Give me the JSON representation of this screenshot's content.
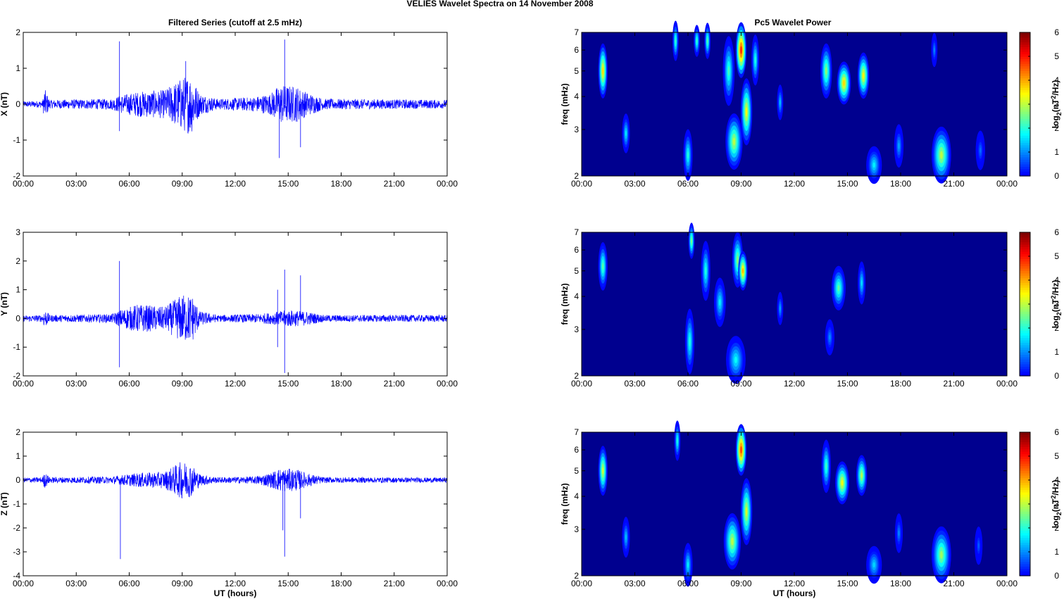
{
  "figure_title": "VELIES Wavelet Spectra on 14 November  2008",
  "left_title": "Filtered Series (cutoff at 2.5 mHz)",
  "right_title": "Pc5 Wavelet Power",
  "x_axis_label": "UT (hours)",
  "colors": {
    "trace": "#0000ff",
    "axis": "#000000"
  },
  "chart_data": [
    {
      "type": "line",
      "title": "Filtered Series (cutoff at 2.5 mHz)",
      "ylabel": "X (nT)",
      "xlabel": "",
      "x_ticks": [
        "00:00",
        "03:00",
        "06:00",
        "09:00",
        "12:00",
        "15:00",
        "18:00",
        "21:00",
        "00:00"
      ],
      "xlim_hours": [
        0,
        24
      ],
      "ylim": [
        -2,
        2
      ],
      "y_ticks": [
        "2",
        "1",
        "0",
        "-1",
        "-2"
      ],
      "baseline_amplitude": 0.1,
      "envelope": [
        [
          0,
          0.08
        ],
        [
          1.1,
          0.1
        ],
        [
          1.2,
          0.45
        ],
        [
          1.5,
          0.12
        ],
        [
          5,
          0.15
        ],
        [
          5.5,
          0.25
        ],
        [
          6.5,
          0.35
        ],
        [
          8,
          0.4
        ],
        [
          9,
          0.75
        ],
        [
          9.5,
          0.85
        ],
        [
          10,
          0.3
        ],
        [
          11,
          0.15
        ],
        [
          13,
          0.2
        ],
        [
          14,
          0.3
        ],
        [
          14.5,
          0.55
        ],
        [
          15.5,
          0.5
        ],
        [
          16,
          0.35
        ],
        [
          17,
          0.15
        ],
        [
          24,
          0.12
        ]
      ],
      "spikes": [
        [
          5.45,
          1.75
        ],
        [
          5.45,
          -0.75
        ],
        [
          9.2,
          1.2
        ],
        [
          14.5,
          -1.5
        ],
        [
          14.8,
          1.8
        ],
        [
          15.7,
          -1.2
        ]
      ],
      "series": [
        {
          "name": "X",
          "color": "#0000ff"
        }
      ]
    },
    {
      "type": "line",
      "title": "",
      "ylabel": "Y (nT)",
      "xlabel": "",
      "x_ticks": [
        "00:00",
        "03:00",
        "06:00",
        "09:00",
        "12:00",
        "15:00",
        "18:00",
        "21:00",
        "00:00"
      ],
      "xlim_hours": [
        0,
        24
      ],
      "ylim": [
        -2,
        3
      ],
      "y_ticks": [
        "3",
        "2",
        "1",
        "0",
        "-1",
        "-2"
      ],
      "baseline_amplitude": 0.12,
      "envelope": [
        [
          0,
          0.1
        ],
        [
          1.1,
          0.12
        ],
        [
          1.2,
          0.35
        ],
        [
          1.5,
          0.12
        ],
        [
          5,
          0.15
        ],
        [
          5.5,
          0.3
        ],
        [
          6.5,
          0.5
        ],
        [
          8,
          0.4
        ],
        [
          9,
          0.85
        ],
        [
          9.6,
          0.8
        ],
        [
          10,
          0.25
        ],
        [
          11,
          0.12
        ],
        [
          13,
          0.15
        ],
        [
          14,
          0.2
        ],
        [
          15,
          0.3
        ],
        [
          16,
          0.25
        ],
        [
          17,
          0.12
        ],
        [
          24,
          0.12
        ]
      ],
      "spikes": [
        [
          5.45,
          2.0
        ],
        [
          5.45,
          -1.7
        ],
        [
          14.4,
          1.0
        ],
        [
          14.4,
          -1.0
        ],
        [
          14.8,
          1.7
        ],
        [
          14.8,
          -1.9
        ],
        [
          15.7,
          1.5
        ]
      ],
      "series": [
        {
          "name": "Y",
          "color": "#0000ff"
        }
      ]
    },
    {
      "type": "line",
      "title": "",
      "ylabel": "Z (nT)",
      "xlabel": "UT (hours)",
      "x_ticks": [
        "00:00",
        "03:00",
        "06:00",
        "09:00",
        "12:00",
        "15:00",
        "18:00",
        "21:00",
        "00:00"
      ],
      "xlim_hours": [
        0,
        24
      ],
      "ylim": [
        -4,
        2
      ],
      "y_ticks": [
        "2",
        "1",
        "0",
        "-1",
        "-2",
        "-3",
        "-4"
      ],
      "baseline_amplitude": 0.1,
      "envelope": [
        [
          0,
          0.1
        ],
        [
          1.1,
          0.12
        ],
        [
          1.2,
          0.35
        ],
        [
          1.5,
          0.12
        ],
        [
          5,
          0.15
        ],
        [
          5.5,
          0.2
        ],
        [
          6.5,
          0.3
        ],
        [
          8,
          0.35
        ],
        [
          9,
          0.8
        ],
        [
          9.5,
          0.7
        ],
        [
          10,
          0.25
        ],
        [
          11,
          0.12
        ],
        [
          13,
          0.15
        ],
        [
          14,
          0.3
        ],
        [
          14.5,
          0.5
        ],
        [
          15.5,
          0.45
        ],
        [
          16,
          0.3
        ],
        [
          17,
          0.12
        ],
        [
          24,
          0.1
        ]
      ],
      "spikes": [
        [
          5.5,
          -3.3
        ],
        [
          14.7,
          -2.1
        ],
        [
          14.8,
          -3.2
        ],
        [
          15.7,
          -1.6
        ]
      ],
      "series": [
        {
          "name": "Z",
          "color": "#0000ff"
        }
      ]
    },
    {
      "type": "heatmap",
      "title": "Pc5 Wavelet Power",
      "ylabel": "freq (mHz)",
      "xlabel": "",
      "x_ticks": [
        "00:00",
        "03:00",
        "06:00",
        "09:00",
        "12:00",
        "15:00",
        "18:00",
        "21:00",
        "00:00"
      ],
      "y_ticks": [
        "7",
        "6",
        "5",
        "4",
        "3",
        "2"
      ],
      "ylim_mHz": [
        2,
        7
      ],
      "y_scale": "log",
      "colorbar_label": "log2(nT2/Hz)",
      "colorbar_ticks": [
        "6",
        "5",
        "4",
        "3",
        "2",
        "1",
        "0"
      ],
      "colorbar_range": [
        0,
        6
      ],
      "blobs": [
        {
          "t": 1.2,
          "f": 5.0,
          "st": 0.12,
          "sf": 0.9,
          "v": 4.5
        },
        {
          "t": 2.5,
          "f": 2.9,
          "st": 0.1,
          "sf": 0.35,
          "v": 2.5
        },
        {
          "t": 5.3,
          "f": 6.5,
          "st": 0.08,
          "sf": 0.8,
          "v": 3.0
        },
        {
          "t": 6.0,
          "f": 2.4,
          "st": 0.12,
          "sf": 0.4,
          "v": 2.8
        },
        {
          "t": 6.5,
          "f": 6.5,
          "st": 0.08,
          "sf": 0.6,
          "v": 3.0
        },
        {
          "t": 7.1,
          "f": 6.5,
          "st": 0.08,
          "sf": 0.7,
          "v": 3.2
        },
        {
          "t": 8.3,
          "f": 5.0,
          "st": 0.15,
          "sf": 1.2,
          "v": 3.0
        },
        {
          "t": 8.6,
          "f": 2.7,
          "st": 0.22,
          "sf": 0.5,
          "v": 3.8
        },
        {
          "t": 9.0,
          "f": 6.0,
          "st": 0.14,
          "sf": 1.1,
          "v": 5.8
        },
        {
          "t": 9.3,
          "f": 3.5,
          "st": 0.15,
          "sf": 0.8,
          "v": 4.2
        },
        {
          "t": 9.8,
          "f": 5.5,
          "st": 0.1,
          "sf": 0.9,
          "v": 2.8
        },
        {
          "t": 11.2,
          "f": 3.8,
          "st": 0.08,
          "sf": 0.4,
          "v": 2.2
        },
        {
          "t": 13.8,
          "f": 5.0,
          "st": 0.15,
          "sf": 0.9,
          "v": 3.5
        },
        {
          "t": 14.8,
          "f": 4.5,
          "st": 0.18,
          "sf": 0.6,
          "v": 4.5
        },
        {
          "t": 15.9,
          "f": 4.8,
          "st": 0.15,
          "sf": 0.7,
          "v": 4.3
        },
        {
          "t": 16.5,
          "f": 2.2,
          "st": 0.2,
          "sf": 0.25,
          "v": 2.5
        },
        {
          "t": 17.9,
          "f": 2.6,
          "st": 0.12,
          "sf": 0.35,
          "v": 2.0
        },
        {
          "t": 20.3,
          "f": 2.4,
          "st": 0.25,
          "sf": 0.45,
          "v": 3.8
        },
        {
          "t": 19.9,
          "f": 6.0,
          "st": 0.08,
          "sf": 0.6,
          "v": 1.8
        },
        {
          "t": 22.5,
          "f": 2.5,
          "st": 0.12,
          "sf": 0.3,
          "v": 1.6
        }
      ]
    },
    {
      "type": "heatmap",
      "title": "",
      "ylabel": "freq (mHz)",
      "xlabel": "",
      "x_ticks": [
        "00:00",
        "03:00",
        "06:00",
        "09:00",
        "12:00",
        "15:00",
        "18:00",
        "21:00",
        "00:00"
      ],
      "y_ticks": [
        "7",
        "6",
        "5",
        "4",
        "3",
        "2"
      ],
      "ylim_mHz": [
        2,
        7
      ],
      "y_scale": "log",
      "colorbar_label": "log2(nT2/Hz)",
      "colorbar_ticks": [
        "6",
        "5",
        "4",
        "3",
        "2",
        "1",
        "0"
      ],
      "colorbar_range": [
        0,
        6
      ],
      "blobs": [
        {
          "t": 1.2,
          "f": 5.2,
          "st": 0.12,
          "sf": 0.8,
          "v": 3.2
        },
        {
          "t": 6.1,
          "f": 2.7,
          "st": 0.12,
          "sf": 0.6,
          "v": 2.8
        },
        {
          "t": 6.2,
          "f": 6.5,
          "st": 0.08,
          "sf": 0.7,
          "v": 3.5
        },
        {
          "t": 7.0,
          "f": 5.0,
          "st": 0.12,
          "sf": 1.0,
          "v": 2.8
        },
        {
          "t": 7.8,
          "f": 3.8,
          "st": 0.15,
          "sf": 0.6,
          "v": 2.5
        },
        {
          "t": 8.8,
          "f": 5.5,
          "st": 0.14,
          "sf": 1.0,
          "v": 3.5
        },
        {
          "t": 9.1,
          "f": 5.0,
          "st": 0.12,
          "sf": 0.6,
          "v": 4.8
        },
        {
          "t": 8.7,
          "f": 2.3,
          "st": 0.25,
          "sf": 0.35,
          "v": 2.6
        },
        {
          "t": 11.2,
          "f": 3.6,
          "st": 0.08,
          "sf": 0.35,
          "v": 2.0
        },
        {
          "t": 14.5,
          "f": 4.3,
          "st": 0.18,
          "sf": 0.6,
          "v": 3.2
        },
        {
          "t": 14.0,
          "f": 2.8,
          "st": 0.12,
          "sf": 0.3,
          "v": 1.8
        },
        {
          "t": 15.8,
          "f": 4.5,
          "st": 0.1,
          "sf": 0.6,
          "v": 2.4
        }
      ]
    },
    {
      "type": "heatmap",
      "title": "",
      "ylabel": "freq (mHz)",
      "xlabel": "UT (hours)",
      "x_ticks": [
        "00:00",
        "03:00",
        "06:00",
        "09:00",
        "12:00",
        "15:00",
        "18:00",
        "21:00",
        "00:00"
      ],
      "y_ticks": [
        "7",
        "6",
        "5",
        "4",
        "3",
        "2"
      ],
      "ylim_mHz": [
        2,
        7
      ],
      "y_scale": "log",
      "colorbar_label": "log2(nT2/Hz)",
      "colorbar_ticks": [
        "6",
        "5",
        "4",
        "3",
        "2",
        "1",
        "0"
      ],
      "colorbar_range": [
        0,
        6
      ],
      "blobs": [
        {
          "t": 1.2,
          "f": 5.0,
          "st": 0.12,
          "sf": 0.8,
          "v": 4.0
        },
        {
          "t": 2.5,
          "f": 2.8,
          "st": 0.1,
          "sf": 0.35,
          "v": 2.2
        },
        {
          "t": 5.4,
          "f": 6.5,
          "st": 0.08,
          "sf": 0.8,
          "v": 2.8
        },
        {
          "t": 6.0,
          "f": 2.2,
          "st": 0.12,
          "sf": 0.3,
          "v": 2.5
        },
        {
          "t": 8.5,
          "f": 2.7,
          "st": 0.22,
          "sf": 0.5,
          "v": 3.8
        },
        {
          "t": 9.0,
          "f": 6.0,
          "st": 0.14,
          "sf": 1.0,
          "v": 5.6
        },
        {
          "t": 9.3,
          "f": 3.5,
          "st": 0.15,
          "sf": 0.8,
          "v": 4.0
        },
        {
          "t": 13.8,
          "f": 5.2,
          "st": 0.12,
          "sf": 0.9,
          "v": 3.0
        },
        {
          "t": 14.7,
          "f": 4.5,
          "st": 0.18,
          "sf": 0.6,
          "v": 4.2
        },
        {
          "t": 15.8,
          "f": 4.8,
          "st": 0.14,
          "sf": 0.6,
          "v": 3.8
        },
        {
          "t": 16.5,
          "f": 2.2,
          "st": 0.2,
          "sf": 0.25,
          "v": 2.3
        },
        {
          "t": 17.9,
          "f": 2.9,
          "st": 0.1,
          "sf": 0.35,
          "v": 1.8
        },
        {
          "t": 20.3,
          "f": 2.4,
          "st": 0.25,
          "sf": 0.45,
          "v": 3.6
        },
        {
          "t": 22.4,
          "f": 2.6,
          "st": 0.1,
          "sf": 0.3,
          "v": 1.5
        }
      ]
    }
  ]
}
